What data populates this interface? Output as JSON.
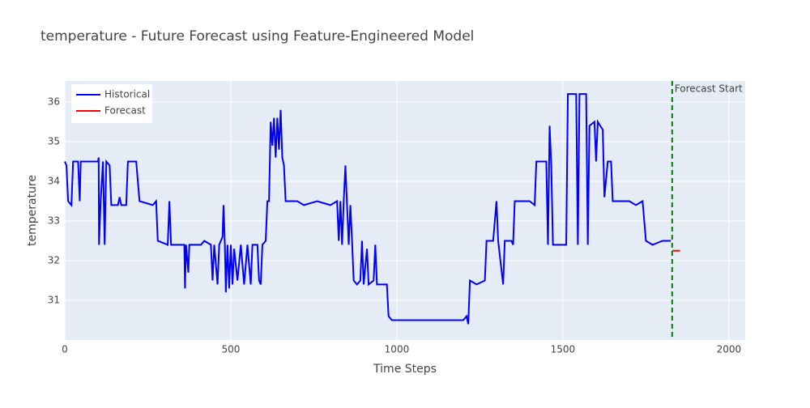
{
  "chart_data": {
    "type": "line",
    "title": "temperature - Future Forecast using Feature-Engineered Model",
    "x_label": "Time Steps",
    "y_label": "temperature",
    "xlim": [
      0,
      2049
    ],
    "ylim": [
      30.0,
      36.53
    ],
    "xticks": [
      0,
      500,
      1000,
      1500,
      2000
    ],
    "yticks": [
      31,
      32,
      33,
      34,
      35,
      36
    ],
    "grid": true,
    "legend": "top-left",
    "vline": {
      "x": 1829,
      "color": "green",
      "label": "Forecast Start"
    },
    "series": [
      {
        "name": "Historical",
        "color": "#0000ff",
        "x": [
          0,
          5,
          10,
          20,
          25,
          40,
          45,
          48,
          100,
          102,
          103,
          108,
          115,
          120,
          125,
          135,
          140,
          160,
          165,
          170,
          185,
          190,
          215,
          225,
          265,
          275,
          280,
          310,
          315,
          320,
          360,
          362,
          365,
          372,
          375,
          410,
          420,
          440,
          445,
          450,
          460,
          465,
          475,
          478,
          482,
          485,
          490,
          495,
          500,
          505,
          510,
          520,
          530,
          540,
          550,
          560,
          565,
          580,
          585,
          590,
          595,
          605,
          610,
          615,
          620,
          625,
          630,
          635,
          640,
          645,
          650,
          655,
          660,
          665,
          700,
          720,
          760,
          800,
          820,
          825,
          830,
          835,
          840,
          845,
          850,
          855,
          860,
          865,
          870,
          880,
          890,
          895,
          900,
          910,
          915,
          930,
          935,
          940,
          960,
          970,
          975,
          985,
          1000,
          1050,
          1100,
          1150,
          1200,
          1210,
          1215,
          1220,
          1240,
          1265,
          1270,
          1290,
          1300,
          1305,
          1320,
          1325,
          1345,
          1350,
          1355,
          1400,
          1415,
          1420,
          1440,
          1450,
          1455,
          1460,
          1465,
          1470,
          1510,
          1515,
          1540,
          1545,
          1550,
          1570,
          1575,
          1580,
          1595,
          1600,
          1605,
          1620,
          1625,
          1635,
          1645,
          1650,
          1700,
          1720,
          1740,
          1750,
          1770,
          1800,
          1825
        ],
        "values": [
          34.5,
          34.4,
          33.5,
          33.4,
          34.5,
          34.5,
          33.5,
          34.5,
          34.5,
          34.6,
          32.4,
          33.5,
          34.5,
          32.4,
          34.5,
          34.4,
          33.4,
          33.4,
          33.6,
          33.4,
          33.4,
          34.5,
          34.5,
          33.5,
          33.4,
          33.5,
          32.5,
          32.4,
          33.5,
          32.4,
          32.4,
          31.3,
          32.4,
          31.7,
          32.4,
          32.4,
          32.5,
          32.4,
          31.5,
          32.4,
          31.4,
          32.4,
          32.6,
          33.4,
          32.4,
          31.2,
          32.4,
          31.3,
          32.4,
          31.4,
          32.3,
          31.5,
          32.4,
          31.4,
          32.4,
          31.4,
          32.4,
          32.4,
          31.5,
          31.4,
          32.4,
          32.5,
          33.5,
          33.5,
          35.5,
          34.9,
          35.6,
          34.6,
          35.6,
          34.8,
          35.8,
          34.6,
          34.4,
          33.5,
          33.5,
          33.4,
          33.5,
          33.4,
          33.5,
          32.5,
          33.5,
          32.4,
          33.5,
          34.4,
          33.4,
          32.4,
          33.4,
          32.5,
          31.5,
          31.4,
          31.5,
          32.5,
          31.4,
          32.3,
          31.4,
          31.5,
          32.4,
          31.4,
          31.4,
          31.4,
          30.6,
          30.5,
          30.5,
          30.5,
          30.5,
          30.5,
          30.5,
          30.6,
          30.4,
          31.5,
          31.4,
          31.5,
          32.5,
          32.5,
          33.5,
          32.5,
          31.4,
          32.5,
          32.5,
          32.4,
          33.5,
          33.5,
          33.4,
          34.5,
          34.5,
          34.5,
          32.4,
          35.4,
          34.4,
          32.4,
          32.4,
          36.2,
          36.2,
          32.4,
          36.2,
          36.2,
          32.4,
          35.4,
          35.5,
          34.5,
          35.5,
          35.3,
          33.6,
          34.5,
          34.5,
          33.5,
          33.5,
          33.4,
          33.5,
          32.5,
          32.4,
          32.5,
          32.5
        ]
      },
      {
        "name": "Forecast",
        "color": "#ff0000",
        "x": [
          1829,
          1853
        ],
        "values": [
          32.25,
          32.25
        ]
      }
    ]
  }
}
